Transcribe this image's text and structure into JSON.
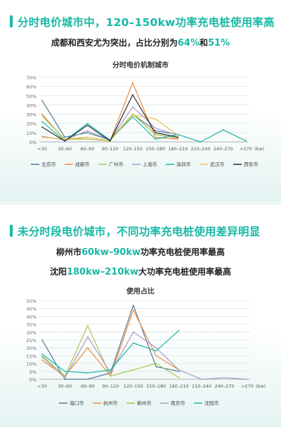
{
  "sections": [
    {
      "title": "分时电价城市中，120–150kw功率充电桩使用率高",
      "subtitle_lines": [
        [
          {
            "text": "成都和西安尤为突出，占比分别为",
            "hl": false
          },
          {
            "text": "64%",
            "hl": true
          },
          {
            "text": "和",
            "hl": false
          },
          {
            "text": "51%",
            "hl": true
          }
        ]
      ]
    },
    {
      "title": "未分时段电价城市，不同功率充电桩使用差异明显",
      "subtitle_lines": [
        [
          {
            "text": "柳州市",
            "hl": false
          },
          {
            "text": "60kw–90kw",
            "hl": true
          },
          {
            "text": "功率充电桩使用率最高",
            "hl": false
          }
        ],
        [
          {
            "text": "沈阳",
            "hl": false
          },
          {
            "text": "180kw–210kw",
            "hl": true
          },
          {
            "text": "大功率充电桩使用率最高",
            "hl": false
          }
        ]
      ]
    }
  ],
  "chart_data": [
    {
      "type": "line",
      "title": "分时电价机制城市",
      "xlabel": "(kw)",
      "ylabel": "",
      "categories": [
        "<30",
        "30–60",
        "60–90",
        "90–120",
        "120–150",
        "150–180",
        "180–210",
        "210–240",
        "240–270",
        ">270"
      ],
      "yticks": [
        "0%",
        "10%",
        "20%",
        "30%",
        "40%",
        "50%",
        "60%",
        "70%"
      ],
      "ylim": [
        0,
        70
      ],
      "grid": true,
      "legend_position": "bottom",
      "series": [
        {
          "name": "北京市",
          "color": "#4e7a99",
          "values": [
            45,
            5,
            10,
            2,
            30,
            12,
            8,
            null,
            null,
            null
          ]
        },
        {
          "name": "成都市",
          "color": "#f08a3c",
          "values": [
            30,
            2,
            5,
            1,
            64,
            5,
            3,
            null,
            null,
            null
          ]
        },
        {
          "name": "广州市",
          "color": "#a8c64a",
          "values": [
            28,
            3,
            3,
            1,
            30,
            8,
            4,
            null,
            null,
            null
          ]
        },
        {
          "name": "上海市",
          "color": "#a79bc8",
          "values": [
            6,
            2,
            12,
            2,
            38,
            15,
            7,
            null,
            null,
            null
          ]
        },
        {
          "name": "深圳市",
          "color": "#1ab8a5",
          "values": [
            22,
            1,
            20,
            2,
            27,
            3,
            8,
            0,
            13,
            1
          ]
        },
        {
          "name": "武汉市",
          "color": "#e8c54a",
          "values": [
            5,
            3,
            5,
            1,
            29,
            25,
            7,
            null,
            null,
            3
          ]
        },
        {
          "name": "西安市",
          "color": "#1f2c3a",
          "values": [
            16,
            1,
            18,
            1,
            51,
            10,
            5,
            null,
            null,
            null
          ]
        }
      ]
    },
    {
      "type": "line",
      "title": "使用占比",
      "xlabel": "(kw)",
      "ylabel": "",
      "categories": [
        "<30",
        "30–60",
        "60–90",
        "90–120",
        "120–150",
        "150–180",
        "180–210",
        "210–240",
        "240–270",
        ">270"
      ],
      "yticks": [
        "0%",
        "5%",
        "10%",
        "15%",
        "20%",
        "25%",
        "30%",
        "35%",
        "40%",
        "45%",
        "50%"
      ],
      "ylim": [
        0,
        50
      ],
      "grid": true,
      "legend_position": "bottom",
      "series": [
        {
          "name": "海口市",
          "color": "#4e7a99",
          "values": [
            25,
            0,
            0,
            4,
            47,
            8,
            5,
            null,
            null,
            null
          ]
        },
        {
          "name": "杭州市",
          "color": "#f08a3c",
          "values": [
            12,
            2,
            20,
            2,
            44,
            15,
            6,
            null,
            null,
            null
          ]
        },
        {
          "name": "柳州市",
          "color": "#a8c64a",
          "values": [
            15,
            2,
            34,
            2,
            6,
            10,
            1,
            null,
            null,
            null
          ]
        },
        {
          "name": "南京市",
          "color": "#a79bc8",
          "values": [
            14,
            1,
            27,
            4,
            30,
            20,
            6,
            0,
            1,
            0
          ]
        },
        {
          "name": "沈阳市",
          "color": "#1ab8a5",
          "values": [
            16,
            5,
            4,
            6,
            23,
            18,
            31,
            null,
            null,
            null
          ]
        }
      ]
    }
  ]
}
